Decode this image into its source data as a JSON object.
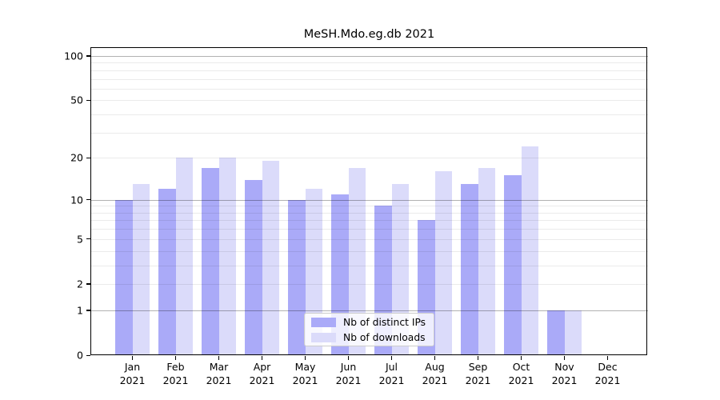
{
  "chart_data": {
    "type": "bar",
    "title": "MeSH.Mdo.eg.db 2021",
    "categories": [
      "Jan",
      "Feb",
      "Mar",
      "Apr",
      "May",
      "Jun",
      "Jul",
      "Aug",
      "Sep",
      "Oct",
      "Nov",
      "Dec"
    ],
    "year": "2021",
    "series": [
      {
        "name": "Nb of distinct IPs",
        "color": "#aaaaf8",
        "values": [
          10,
          12,
          17,
          14,
          10,
          11,
          9,
          7,
          13,
          15,
          1,
          0
        ]
      },
      {
        "name": "Nb of downloads",
        "color": "#dbdbfa",
        "values": [
          13,
          20,
          20,
          19,
          12,
          17,
          13,
          16,
          17,
          24,
          1,
          0
        ]
      }
    ],
    "yscale": "log1p",
    "yticks": [
      0,
      1,
      2,
      5,
      10,
      20,
      50,
      100
    ],
    "ylim": [
      0,
      113
    ],
    "grid": "horizontal",
    "legend_position": "lower center",
    "colors": {
      "bar_dark": "#aaaaf8",
      "bar_light": "#dbdbfa",
      "major_grid": "rgba(0,0,0,0.30)",
      "minor_grid": "rgba(0,0,0,0.08)",
      "spine": "#000000"
    }
  }
}
